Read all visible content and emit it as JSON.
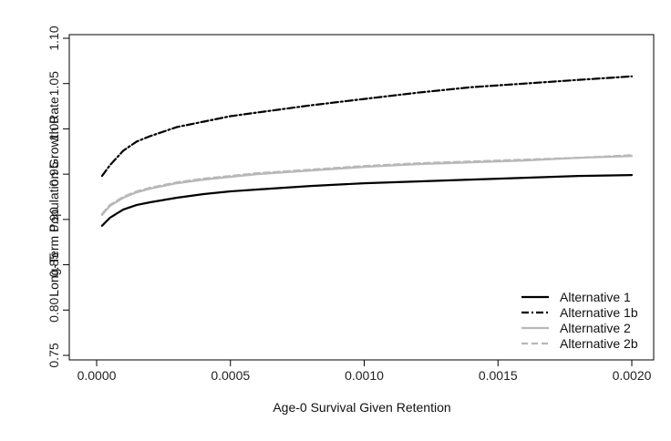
{
  "chart_data": {
    "type": "line",
    "title": "",
    "xlabel": "Age-0 Survival Given Retention",
    "ylabel": "Long-Term Population Growth Rate",
    "xlim": [
      0.0,
      0.002
    ],
    "ylim": [
      0.75,
      1.1
    ],
    "x_ticks": [
      0.0,
      0.0005,
      0.001,
      0.0015,
      0.002
    ],
    "x_tick_labels": [
      "0.0000",
      "0.0005",
      "0.0010",
      "0.0015",
      "0.0020"
    ],
    "y_ticks": [
      0.75,
      0.8,
      0.85,
      0.9,
      0.95,
      1.0,
      1.05,
      1.1
    ],
    "y_tick_labels": [
      "0.75",
      "0.80",
      "0.85",
      "0.90",
      "0.95",
      "1.00",
      "1.05",
      "1.10"
    ],
    "grid": false,
    "legend_position": "bottom-right",
    "series": [
      {
        "name": "Alternative 1",
        "color": "#000000",
        "style": "solid",
        "x": [
          2e-05,
          5e-05,
          0.0001,
          0.00015,
          0.0002,
          0.0003,
          0.0004,
          0.0005,
          0.0006,
          0.0008,
          0.001,
          0.0012,
          0.0014,
          0.0016,
          0.0018,
          0.002
        ],
        "y": [
          0.893,
          0.902,
          0.911,
          0.916,
          0.919,
          0.924,
          0.928,
          0.931,
          0.933,
          0.937,
          0.94,
          0.942,
          0.944,
          0.946,
          0.948,
          0.949
        ]
      },
      {
        "name": "Alternative 1b",
        "color": "#000000",
        "style": "dashdot",
        "x": [
          2e-05,
          5e-05,
          0.0001,
          0.00015,
          0.0002,
          0.0003,
          0.0004,
          0.0005,
          0.0006,
          0.0008,
          0.001,
          0.0012,
          0.0014,
          0.0016,
          0.0018,
          0.002
        ],
        "y": [
          0.948,
          0.96,
          0.976,
          0.986,
          0.992,
          1.002,
          1.008,
          1.014,
          1.018,
          1.026,
          1.033,
          1.04,
          1.046,
          1.05,
          1.054,
          1.058
        ]
      },
      {
        "name": "Alternative 2",
        "color": "#b8b8b8",
        "style": "solid",
        "x": [
          2e-05,
          5e-05,
          0.0001,
          0.00015,
          0.0002,
          0.0003,
          0.0004,
          0.0005,
          0.0006,
          0.0008,
          0.001,
          0.0012,
          0.0014,
          0.0016,
          0.0018,
          0.002
        ],
        "y": [
          0.905,
          0.915,
          0.924,
          0.93,
          0.934,
          0.94,
          0.944,
          0.947,
          0.95,
          0.954,
          0.958,
          0.961,
          0.963,
          0.965,
          0.968,
          0.97
        ]
      },
      {
        "name": "Alternative 2b",
        "color": "#b8b8b8",
        "style": "dashed",
        "x": [
          2e-05,
          5e-05,
          0.0001,
          0.00015,
          0.0002,
          0.0003,
          0.0004,
          0.0005,
          0.0006,
          0.0008,
          0.001,
          0.0012,
          0.0014,
          0.0016,
          0.0018,
          0.002
        ],
        "y": [
          0.906,
          0.916,
          0.925,
          0.931,
          0.935,
          0.941,
          0.945,
          0.948,
          0.951,
          0.955,
          0.959,
          0.962,
          0.964,
          0.966,
          0.968,
          0.971
        ]
      }
    ]
  }
}
